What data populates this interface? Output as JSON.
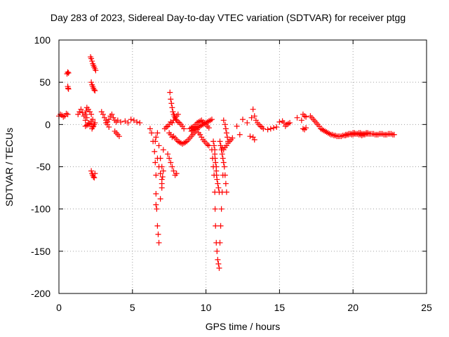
{
  "chart_data": {
    "type": "scatter",
    "title": "Day 283 of 2023, Sidereal Day-to-day VTEC variation (SDTVAR) for receiver ptgg",
    "xlabel": "GPS time / hours",
    "ylabel": "SDTVAR / TECUs",
    "xlim": [
      0,
      25
    ],
    "ylim": [
      -200,
      100
    ],
    "xticks": [
      0,
      5,
      10,
      15,
      20,
      25
    ],
    "yticks": [
      -200,
      -150,
      -100,
      -50,
      0,
      50,
      100
    ],
    "xtick_labels": [
      "0",
      "5",
      "10",
      "15",
      "20",
      "25"
    ],
    "ytick_labels": [
      "-200",
      "-150",
      "-100",
      "-50",
      "0",
      "50",
      "100"
    ],
    "grid": true,
    "marker": "+",
    "color": "#ff0000",
    "series": [
      {
        "name": "SDTVAR",
        "x": [
          0.0,
          0.1,
          0.2,
          0.3,
          0.4,
          0.5,
          0.6,
          0.55,
          0.6,
          0.65,
          0.6,
          0.62,
          0.65,
          1.3,
          1.4,
          1.5,
          1.6,
          1.7,
          1.8,
          1.85,
          1.9,
          2.0,
          2.1,
          2.2,
          1.8,
          1.9,
          2.0,
          2.1,
          2.2,
          2.3,
          1.8,
          1.9,
          2.0,
          2.1,
          2.2,
          2.15,
          2.2,
          2.25,
          2.3,
          2.35,
          2.4,
          2.45,
          2.5,
          2.2,
          2.25,
          2.3,
          2.35,
          2.4,
          2.45,
          2.2,
          2.25,
          2.3,
          2.35,
          2.4,
          2.45,
          2.25,
          2.3,
          2.35,
          2.4,
          2.45,
          2.9,
          3.0,
          3.1,
          3.2,
          3.3,
          3.4,
          3.5,
          3.6,
          3.7,
          3.8,
          3.9,
          3.2,
          3.3,
          3.4,
          3.8,
          3.9,
          4.0,
          4.1,
          4.0,
          4.2,
          4.5,
          4.7,
          4.9,
          5.1,
          5.3,
          5.5,
          6.2,
          6.3,
          6.4,
          6.5,
          6.55,
          6.6,
          6.6,
          6.6,
          6.65,
          6.7,
          6.75,
          6.8,
          6.9,
          7.0,
          7.0,
          7.05,
          7.1,
          6.7,
          6.8,
          6.9,
          7.0,
          7.1,
          6.55,
          6.6,
          6.7,
          6.8,
          6.9,
          7.0,
          7.2,
          7.3,
          7.4,
          7.5,
          7.6,
          7.7,
          7.8,
          7.9,
          8.0,
          8.1,
          7.4,
          7.5,
          7.6,
          7.7,
          7.8,
          7.9,
          8.0,
          7.55,
          7.6,
          7.65,
          7.7,
          7.75,
          7.8,
          7.85,
          7.9,
          7.95,
          8.0,
          8.1,
          8.2,
          8.3,
          8.4,
          8.5,
          7.5,
          7.6,
          7.7,
          7.8,
          7.9,
          8.0,
          8.1,
          8.2,
          8.3,
          8.4,
          8.5,
          8.6,
          8.7,
          8.8,
          8.9,
          9.0,
          9.1,
          9.2,
          9.3,
          9.4,
          9.5,
          9.6,
          9.7,
          9.8,
          9.9,
          10.0,
          10.1,
          10.2,
          8.9,
          9.0,
          9.1,
          9.2,
          9.3,
          9.4,
          9.5,
          9.6,
          9.7,
          9.8,
          9.9,
          10.0,
          10.1,
          10.2,
          9.0,
          9.1,
          9.2,
          9.3,
          9.4,
          9.5,
          9.6,
          9.7,
          9.8,
          9.9,
          10.0,
          10.1,
          10.2,
          10.3,
          10.4,
          10.4,
          10.45,
          10.5,
          10.55,
          10.6,
          10.62,
          10.65,
          10.7,
          10.75,
          10.8,
          10.85,
          10.9,
          10.95,
          11.0,
          11.05,
          11.1,
          11.15,
          10.5,
          10.55,
          10.6,
          10.6,
          10.62,
          10.65,
          10.7,
          10.7,
          10.72,
          10.75,
          10.8,
          10.85,
          10.9,
          10.95,
          11.0,
          11.05,
          11.1,
          11.15,
          11.2,
          11.25,
          11.3,
          11.35,
          11.4,
          11.2,
          11.3,
          11.35,
          11.4,
          11.45,
          11.5,
          11.0,
          11.1,
          11.2,
          11.3,
          11.4,
          11.5,
          11.6,
          11.7,
          11.8,
          12.1,
          12.3,
          12.5,
          12.8,
          13.0,
          13.1,
          13.2,
          13.3,
          13.4,
          13.5,
          13.6,
          13.7,
          13.8,
          13.9,
          13.2,
          13.3,
          14.2,
          14.4,
          14.6,
          14.8,
          15.0,
          15.2,
          15.3,
          15.4,
          15.5,
          15.6,
          15.7,
          16.2,
          16.5,
          16.6,
          16.7,
          16.8,
          16.6,
          16.7,
          16.8,
          17.1,
          17.2,
          17.3,
          17.4,
          17.5,
          17.6,
          17.7,
          17.8,
          17.9,
          18.0,
          18.1,
          18.2,
          18.3,
          18.4,
          18.5,
          18.6,
          18.7,
          18.8,
          18.9,
          19.0,
          19.1,
          19.2,
          19.3,
          19.4,
          19.5,
          19.6,
          19.7,
          19.8,
          19.9,
          20.0,
          20.1,
          20.2,
          20.3,
          20.4,
          20.5,
          20.6,
          20.7,
          20.8,
          20.9,
          21.0,
          21.1,
          21.2,
          21.3,
          21.4,
          21.5,
          21.6,
          21.7,
          21.8,
          21.9,
          22.0,
          22.1,
          22.2,
          22.3,
          22.4,
          22.5,
          22.6,
          22.7,
          22.8,
          19.5,
          19.6,
          19.7,
          19.8,
          19.9,
          20.0,
          20.1,
          20.2,
          20.3,
          20.4,
          20.5,
          20.6,
          20.7,
          20.8,
          20.9,
          21.0
        ],
        "y": [
          10,
          12,
          11,
          9,
          10,
          13,
          12,
          60,
          62,
          61,
          45,
          43,
          42,
          12,
          15,
          18,
          14,
          10,
          12,
          16,
          20,
          18,
          15,
          12,
          5,
          8,
          2,
          0,
          4,
          6,
          -2,
          -1,
          0,
          1,
          0,
          80,
          78,
          75,
          72,
          70,
          68,
          66,
          64,
          50,
          47,
          45,
          43,
          41,
          40,
          -55,
          -58,
          -60,
          -62,
          -63,
          -58,
          -5,
          -3,
          -2,
          0,
          2,
          15,
          12,
          8,
          5,
          3,
          6,
          10,
          12,
          8,
          5,
          3,
          2,
          0,
          -3,
          -8,
          -10,
          -12,
          -14,
          5,
          3,
          4,
          2,
          6,
          5,
          3,
          2,
          -5,
          -10,
          -20,
          -32,
          -45,
          -60,
          -82,
          -95,
          -100,
          -120,
          -130,
          -140,
          -88,
          -75,
          -70,
          -62,
          -55,
          -40,
          -50,
          -58,
          -65,
          -30,
          -20,
          -15,
          -10,
          -25,
          -40,
          -50,
          -5,
          -3,
          -2,
          0,
          3,
          2,
          5,
          8,
          10,
          12,
          -35,
          -40,
          -45,
          -50,
          -55,
          -60,
          -58,
          38,
          30,
          25,
          20,
          15,
          12,
          10,
          8,
          6,
          5,
          3,
          2,
          0,
          -2,
          -5,
          -10,
          -12,
          -15,
          -14,
          -16,
          -18,
          -20,
          -21,
          -22,
          -23,
          -22,
          -21,
          -20,
          -18,
          -16,
          -14,
          -12,
          -10,
          -8,
          -6,
          -10,
          -12,
          -15,
          -18,
          -20,
          -22,
          -24,
          -25,
          -5,
          -4,
          -3,
          -2,
          0,
          2,
          3,
          4,
          5,
          3,
          2,
          0,
          -2,
          -4,
          -8,
          -7,
          -6,
          -5,
          -4,
          -3,
          -2,
          -1,
          0,
          1,
          2,
          3,
          4,
          5,
          6,
          -30,
          -40,
          -50,
          -60,
          -80,
          -100,
          -120,
          -140,
          -150,
          -160,
          -165,
          -170,
          -140,
          -120,
          -100,
          -80,
          -60,
          -20,
          -25,
          -30,
          -35,
          -40,
          -45,
          -50,
          -55,
          -60,
          -65,
          -70,
          -75,
          -80,
          -20,
          -25,
          -30,
          -35,
          -40,
          -45,
          -50,
          -60,
          -70,
          -80,
          5,
          0,
          -5,
          -10,
          -15,
          -20,
          -25,
          -28,
          -30,
          -27,
          -25,
          -22,
          -20,
          -18,
          -16,
          -2,
          -12,
          6,
          2,
          -14,
          8,
          18,
          10,
          5,
          2,
          0,
          -2,
          -3,
          -5,
          -15,
          -18,
          -6,
          -5,
          -4,
          -3,
          3,
          4,
          2,
          -2,
          0,
          1,
          2,
          8,
          5,
          12,
          10,
          9,
          -5,
          -6,
          -4,
          10,
          8,
          6,
          4,
          2,
          0,
          -2,
          -5,
          -6,
          -7,
          -8,
          -9,
          -10,
          -11,
          -12,
          -12,
          -13,
          -13,
          -14,
          -14,
          -14,
          -14,
          -13,
          -13,
          -12,
          -12,
          -11,
          -11,
          -12,
          -12,
          -11,
          -11,
          -11,
          -10,
          -10,
          -11,
          -11,
          -11,
          -10,
          -10,
          -11,
          -11,
          -11,
          -11,
          -12,
          -12,
          -12,
          -11,
          -11,
          -11,
          -12,
          -12,
          -12,
          -11,
          -11,
          -11,
          -12,
          -12,
          -13,
          -12,
          -12,
          -11,
          -11,
          -10,
          -10,
          -11,
          -11,
          -12,
          -12,
          -13,
          -12,
          -12,
          -11,
          -11
        ]
      }
    ]
  }
}
